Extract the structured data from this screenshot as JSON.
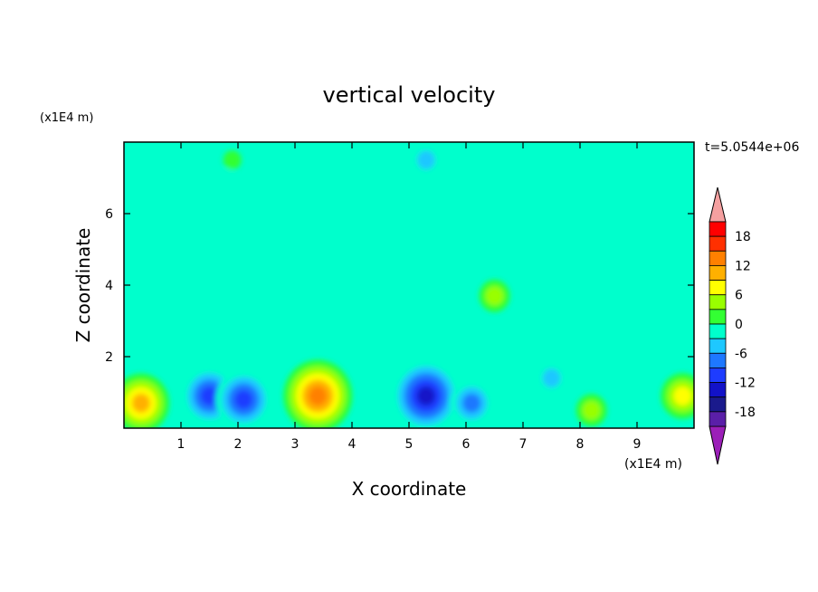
{
  "chart_data": {
    "type": "heatmap",
    "title": "vertical velocity",
    "xlabel": "X coordinate",
    "ylabel": "Z coordinate",
    "x_unit": "(x1E4 m)",
    "y_unit": "(x1E4 m)",
    "time_label": "t=5.0544e+06",
    "xlim": [
      0,
      10
    ],
    "ylim": [
      0,
      8
    ],
    "x_ticks": [
      1,
      2,
      3,
      4,
      5,
      6,
      7,
      8,
      9
    ],
    "y_ticks": [
      2,
      4,
      6
    ],
    "colorbar": {
      "tick_labels": [
        "18",
        "12",
        "6",
        "0",
        "-6",
        "-12",
        "-18"
      ],
      "tick_values": [
        18,
        12,
        6,
        0,
        -6,
        -12,
        -18
      ],
      "levels": [
        -21,
        -18,
        -15,
        -12,
        -9,
        -6,
        -3,
        0,
        3,
        6,
        9,
        12,
        15,
        18,
        21
      ],
      "colors": [
        "#9b1fb8",
        "#5a1fa8",
        "#1a1a8c",
        "#1212c8",
        "#1e3cff",
        "#1e78ff",
        "#1ec8ff",
        "#00ffcc",
        "#33ff33",
        "#99ff00",
        "#ffff00",
        "#ffb000",
        "#ff8000",
        "#ff3000",
        "#ff0000",
        "#f5a0a0"
      ],
      "extend": "both",
      "placement": "right"
    },
    "features": [
      {
        "x": 0.3,
        "z": 0.7,
        "value": 12
      },
      {
        "x": 9.8,
        "z": 0.9,
        "value": 9
      },
      {
        "x": 1.5,
        "z": 0.9,
        "value": -12
      },
      {
        "x": 2.1,
        "z": 0.8,
        "value": -12
      },
      {
        "x": 3.4,
        "z": 0.9,
        "value": 15
      },
      {
        "x": 5.3,
        "z": 0.9,
        "value": -14
      },
      {
        "x": 6.1,
        "z": 0.7,
        "value": -10
      },
      {
        "x": 8.2,
        "z": 0.5,
        "value": 6
      },
      {
        "x": 7.5,
        "z": 1.4,
        "value": -6
      },
      {
        "x": 6.5,
        "z": 3.7,
        "value": 6
      },
      {
        "x": 5.3,
        "z": 7.5,
        "value": -5
      },
      {
        "x": 4.3,
        "z": 7.1,
        "value": -3
      },
      {
        "x": 7.3,
        "z": 3.6,
        "value": -3
      },
      {
        "x": 1.9,
        "z": 7.5,
        "value": 3
      },
      {
        "x": 1.8,
        "z": 7.0,
        "value": -3
      }
    ],
    "background_value": 0
  }
}
